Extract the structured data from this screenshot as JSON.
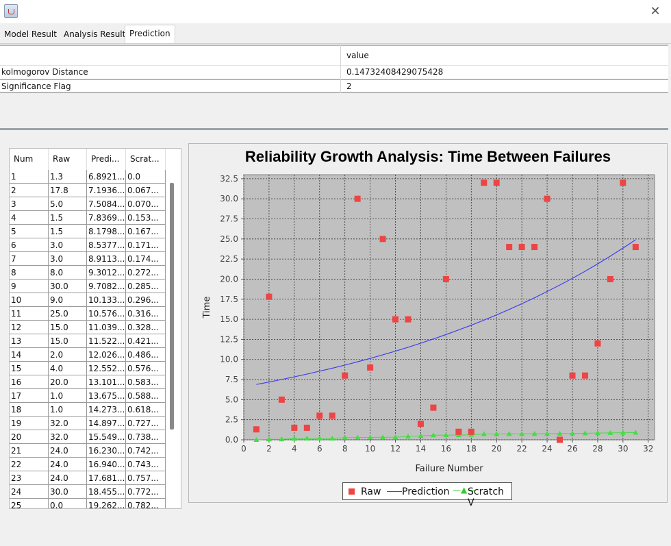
{
  "tabs": [
    "Model Result",
    "Analysis Result",
    "Prediction"
  ],
  "ks_table": {
    "header_value": "value",
    "rows": [
      {
        "label": "kolmogorov Distance",
        "value": "0.14732408429075428"
      },
      {
        "label": "Significance Flag",
        "value": "2"
      }
    ]
  },
  "left_table": {
    "headers": [
      "Num",
      "Raw",
      "Predi...",
      "Scrat..."
    ],
    "rows": [
      [
        "1",
        "1.3",
        "6.8921...",
        "0.0"
      ],
      [
        "2",
        "17.8",
        "7.1936...",
        "0.067..."
      ],
      [
        "3",
        "5.0",
        "7.5084...",
        "0.070..."
      ],
      [
        "4",
        "1.5",
        "7.8369...",
        "0.153..."
      ],
      [
        "5",
        "1.5",
        "8.1798...",
        "0.167..."
      ],
      [
        "6",
        "3.0",
        "8.5377...",
        "0.171..."
      ],
      [
        "7",
        "3.0",
        "8.9113...",
        "0.174..."
      ],
      [
        "8",
        "8.0",
        "9.3012...",
        "0.272..."
      ],
      [
        "9",
        "30.0",
        "9.7082...",
        "0.285..."
      ],
      [
        "10",
        "9.0",
        "10.133...",
        "0.296..."
      ],
      [
        "11",
        "25.0",
        "10.576...",
        "0.316..."
      ],
      [
        "12",
        "15.0",
        "11.039...",
        "0.328..."
      ],
      [
        "13",
        "15.0",
        "11.522...",
        "0.421..."
      ],
      [
        "14",
        "2.0",
        "12.026...",
        "0.486..."
      ],
      [
        "15",
        "4.0",
        "12.552...",
        "0.576..."
      ],
      [
        "16",
        "20.0",
        "13.101...",
        "0.583..."
      ],
      [
        "17",
        "1.0",
        "13.675...",
        "0.588..."
      ],
      [
        "18",
        "1.0",
        "14.273...",
        "0.618..."
      ],
      [
        "19",
        "32.0",
        "14.897...",
        "0.727..."
      ],
      [
        "20",
        "32.0",
        "15.549...",
        "0.738..."
      ],
      [
        "21",
        "24.0",
        "16.230...",
        "0.742..."
      ],
      [
        "22",
        "24.0",
        "16.940...",
        "0.743..."
      ],
      [
        "23",
        "24.0",
        "17.681...",
        "0.757..."
      ],
      [
        "24",
        "30.0",
        "18.455...",
        "0.772..."
      ],
      [
        "25",
        "0.0",
        "19.262...",
        "0.782..."
      ]
    ]
  },
  "chart_data": {
    "type": "scatter",
    "title": "Reliability Growth Analysis: Time Between Failures",
    "xlabel": "Failure Number",
    "ylabel": "Time",
    "xlim": [
      0,
      32.5
    ],
    "ylim": [
      0,
      33
    ],
    "xticks": [
      "0",
      "2",
      "4",
      "6",
      "8",
      "10",
      "12",
      "14",
      "16",
      "18",
      "20",
      "22",
      "24",
      "26",
      "28",
      "30",
      "32"
    ],
    "yticks": [
      "0.0",
      "2.5",
      "5.0",
      "7.5",
      "10.0",
      "12.5",
      "15.0",
      "17.5",
      "20.0",
      "22.5",
      "25.0",
      "27.5",
      "30.0",
      "32.5"
    ],
    "grid": true,
    "legend_position": "bottom",
    "x": [
      1,
      2,
      3,
      4,
      5,
      6,
      7,
      8,
      9,
      10,
      11,
      12,
      13,
      14,
      15,
      16,
      17,
      18,
      19,
      20,
      21,
      22,
      23,
      24,
      25,
      26,
      27,
      28,
      29,
      30,
      31
    ],
    "series": [
      {
        "name": "Raw",
        "style": "square-marker",
        "color": "#ee4444",
        "values": [
          1.3,
          17.8,
          5.0,
          1.5,
          1.5,
          3.0,
          3.0,
          8.0,
          30.0,
          9.0,
          25.0,
          15.0,
          15.0,
          2.0,
          4.0,
          20.0,
          1.0,
          1.0,
          32.0,
          32.0,
          24.0,
          24.0,
          24.0,
          30.0,
          0.0,
          8.0,
          8.0,
          12.0,
          20.0,
          32.0,
          24.0
        ]
      },
      {
        "name": "Prediction",
        "style": "line",
        "color": "#4040ee",
        "values": [
          6.89,
          7.19,
          7.51,
          7.84,
          8.18,
          8.54,
          8.91,
          9.3,
          9.71,
          10.13,
          10.58,
          11.04,
          11.52,
          12.03,
          12.55,
          13.1,
          13.68,
          14.27,
          14.9,
          15.55,
          16.23,
          16.94,
          17.68,
          18.46,
          19.26,
          20.1,
          20.98,
          21.9,
          22.86,
          23.86,
          24.9
        ]
      },
      {
        "name": "Scratch V",
        "style": "triangle-marker-line",
        "color": "#44dd44",
        "values": [
          0.0,
          0.067,
          0.07,
          0.153,
          0.167,
          0.171,
          0.174,
          0.272,
          0.285,
          0.296,
          0.316,
          0.328,
          0.421,
          0.486,
          0.576,
          0.583,
          0.588,
          0.618,
          0.727,
          0.738,
          0.742,
          0.743,
          0.757,
          0.772,
          0.782,
          0.8,
          0.82,
          0.84,
          0.86,
          0.88,
          0.9
        ]
      }
    ]
  }
}
